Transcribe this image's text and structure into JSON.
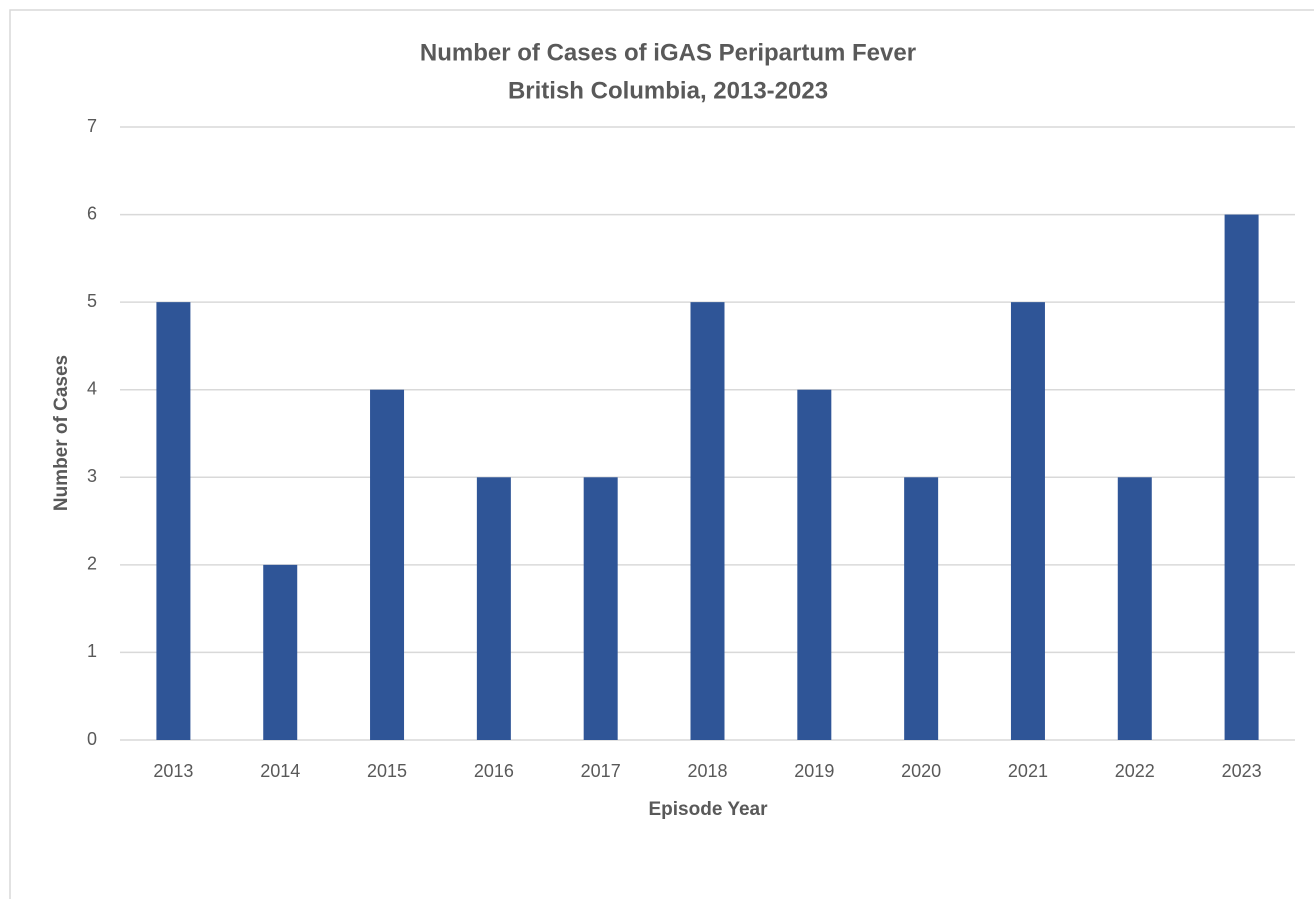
{
  "chart_data": {
    "type": "bar",
    "title": "Number of Cases of iGAS Peripartum Fever",
    "subtitle": "British Columbia, 2013-2023",
    "x_label": "Episode Year",
    "y_label": "Number of Cases",
    "categories": [
      "2013",
      "2014",
      "2015",
      "2016",
      "2017",
      "2018",
      "2019",
      "2020",
      "2021",
      "2022",
      "2023"
    ],
    "values": [
      5,
      2,
      4,
      3,
      3,
      5,
      4,
      3,
      5,
      3,
      6
    ],
    "color": "#2f5597",
    "ylim": [
      0,
      7
    ],
    "yticks": [
      0,
      1,
      2,
      3,
      4,
      5,
      6,
      7
    ],
    "grid": true
  }
}
